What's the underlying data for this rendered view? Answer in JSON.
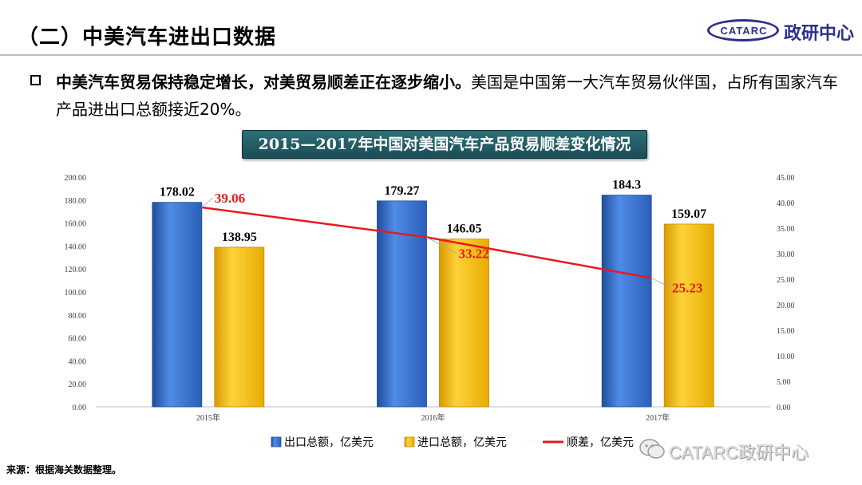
{
  "header": {
    "title": "（二）中美汽车进出口数据",
    "logo_oval_text": "CATARC",
    "logo_text": "政研中心"
  },
  "paragraph": {
    "bold": "中美汽车贸易保持稳定增长，对美贸易顺差正在逐步缩小。",
    "rest": "美国是中国第一大汽车贸易伙伴国，占所有国家汽车产品进出口总额接近20%。"
  },
  "banner": "2015—2017年中国对美国汽车产品贸易顺差变化情况",
  "chart_data": {
    "type": "bar",
    "categories": [
      "2015年",
      "2016年",
      "2017年"
    ],
    "series": [
      {
        "name": "出口总额，亿美元",
        "type": "bar",
        "axis": "left",
        "values": [
          178.02,
          179.27,
          184.3
        ],
        "color": "#2f6ed0"
      },
      {
        "name": "进口总额，亿美元",
        "type": "bar",
        "axis": "left",
        "values": [
          138.95,
          146.05,
          159.07
        ],
        "color": "#ffc000"
      },
      {
        "name": "顺差，亿美元",
        "type": "line",
        "axis": "right",
        "values": [
          39.06,
          33.22,
          25.23
        ],
        "color": "#e8191e"
      }
    ],
    "data_labels": {
      "export": [
        "178.02",
        "179.27",
        "184.3"
      ],
      "import": [
        "138.95",
        "146.05",
        "159.07"
      ],
      "surplus": [
        "39.06",
        "33.22",
        "25.23"
      ]
    },
    "ylim_left": [
      0,
      200
    ],
    "ylim_right": [
      0,
      45
    ],
    "left_ticks": [
      "0.00",
      "20.00",
      "40.00",
      "60.00",
      "80.00",
      "100.00",
      "120.00",
      "140.00",
      "160.00",
      "180.00",
      "200.00"
    ],
    "right_ticks": [
      "0.00",
      "5.00",
      "10.00",
      "15.00",
      "20.00",
      "25.00",
      "30.00",
      "35.00",
      "40.00",
      "45.00"
    ],
    "grid": false,
    "legend_position": "bottom"
  },
  "source": "来源：根据海关数据整理。",
  "watermark": "CATARC政研中心"
}
